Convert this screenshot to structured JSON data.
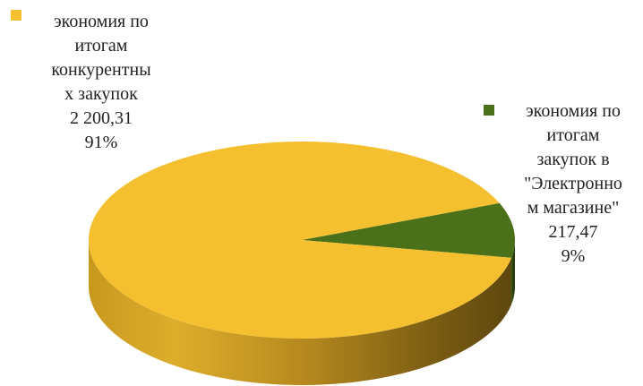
{
  "chart_data": {
    "type": "pie",
    "title": "",
    "style": "3d",
    "series": [
      {
        "values": [
          2200.31,
          217.47
        ]
      }
    ],
    "slices": [
      {
        "label_lines": [
          "экономия по",
          "итогам",
          "конкурентны",
          "х закупок"
        ],
        "value": 2200.31,
        "value_text": "2 200,31",
        "percent": 91,
        "percent_text": "91%",
        "color": "#F5C02F"
      },
      {
        "label_lines": [
          "экономия по",
          "итогам",
          "закупок в",
          "\"Электронно",
          "м магазине\""
        ],
        "value": 217.47,
        "value_text": "217,47",
        "percent": 9,
        "percent_text": "9%",
        "color": "#4A7019"
      }
    ],
    "data_labels": "category, value, percent",
    "legend": "none"
  }
}
